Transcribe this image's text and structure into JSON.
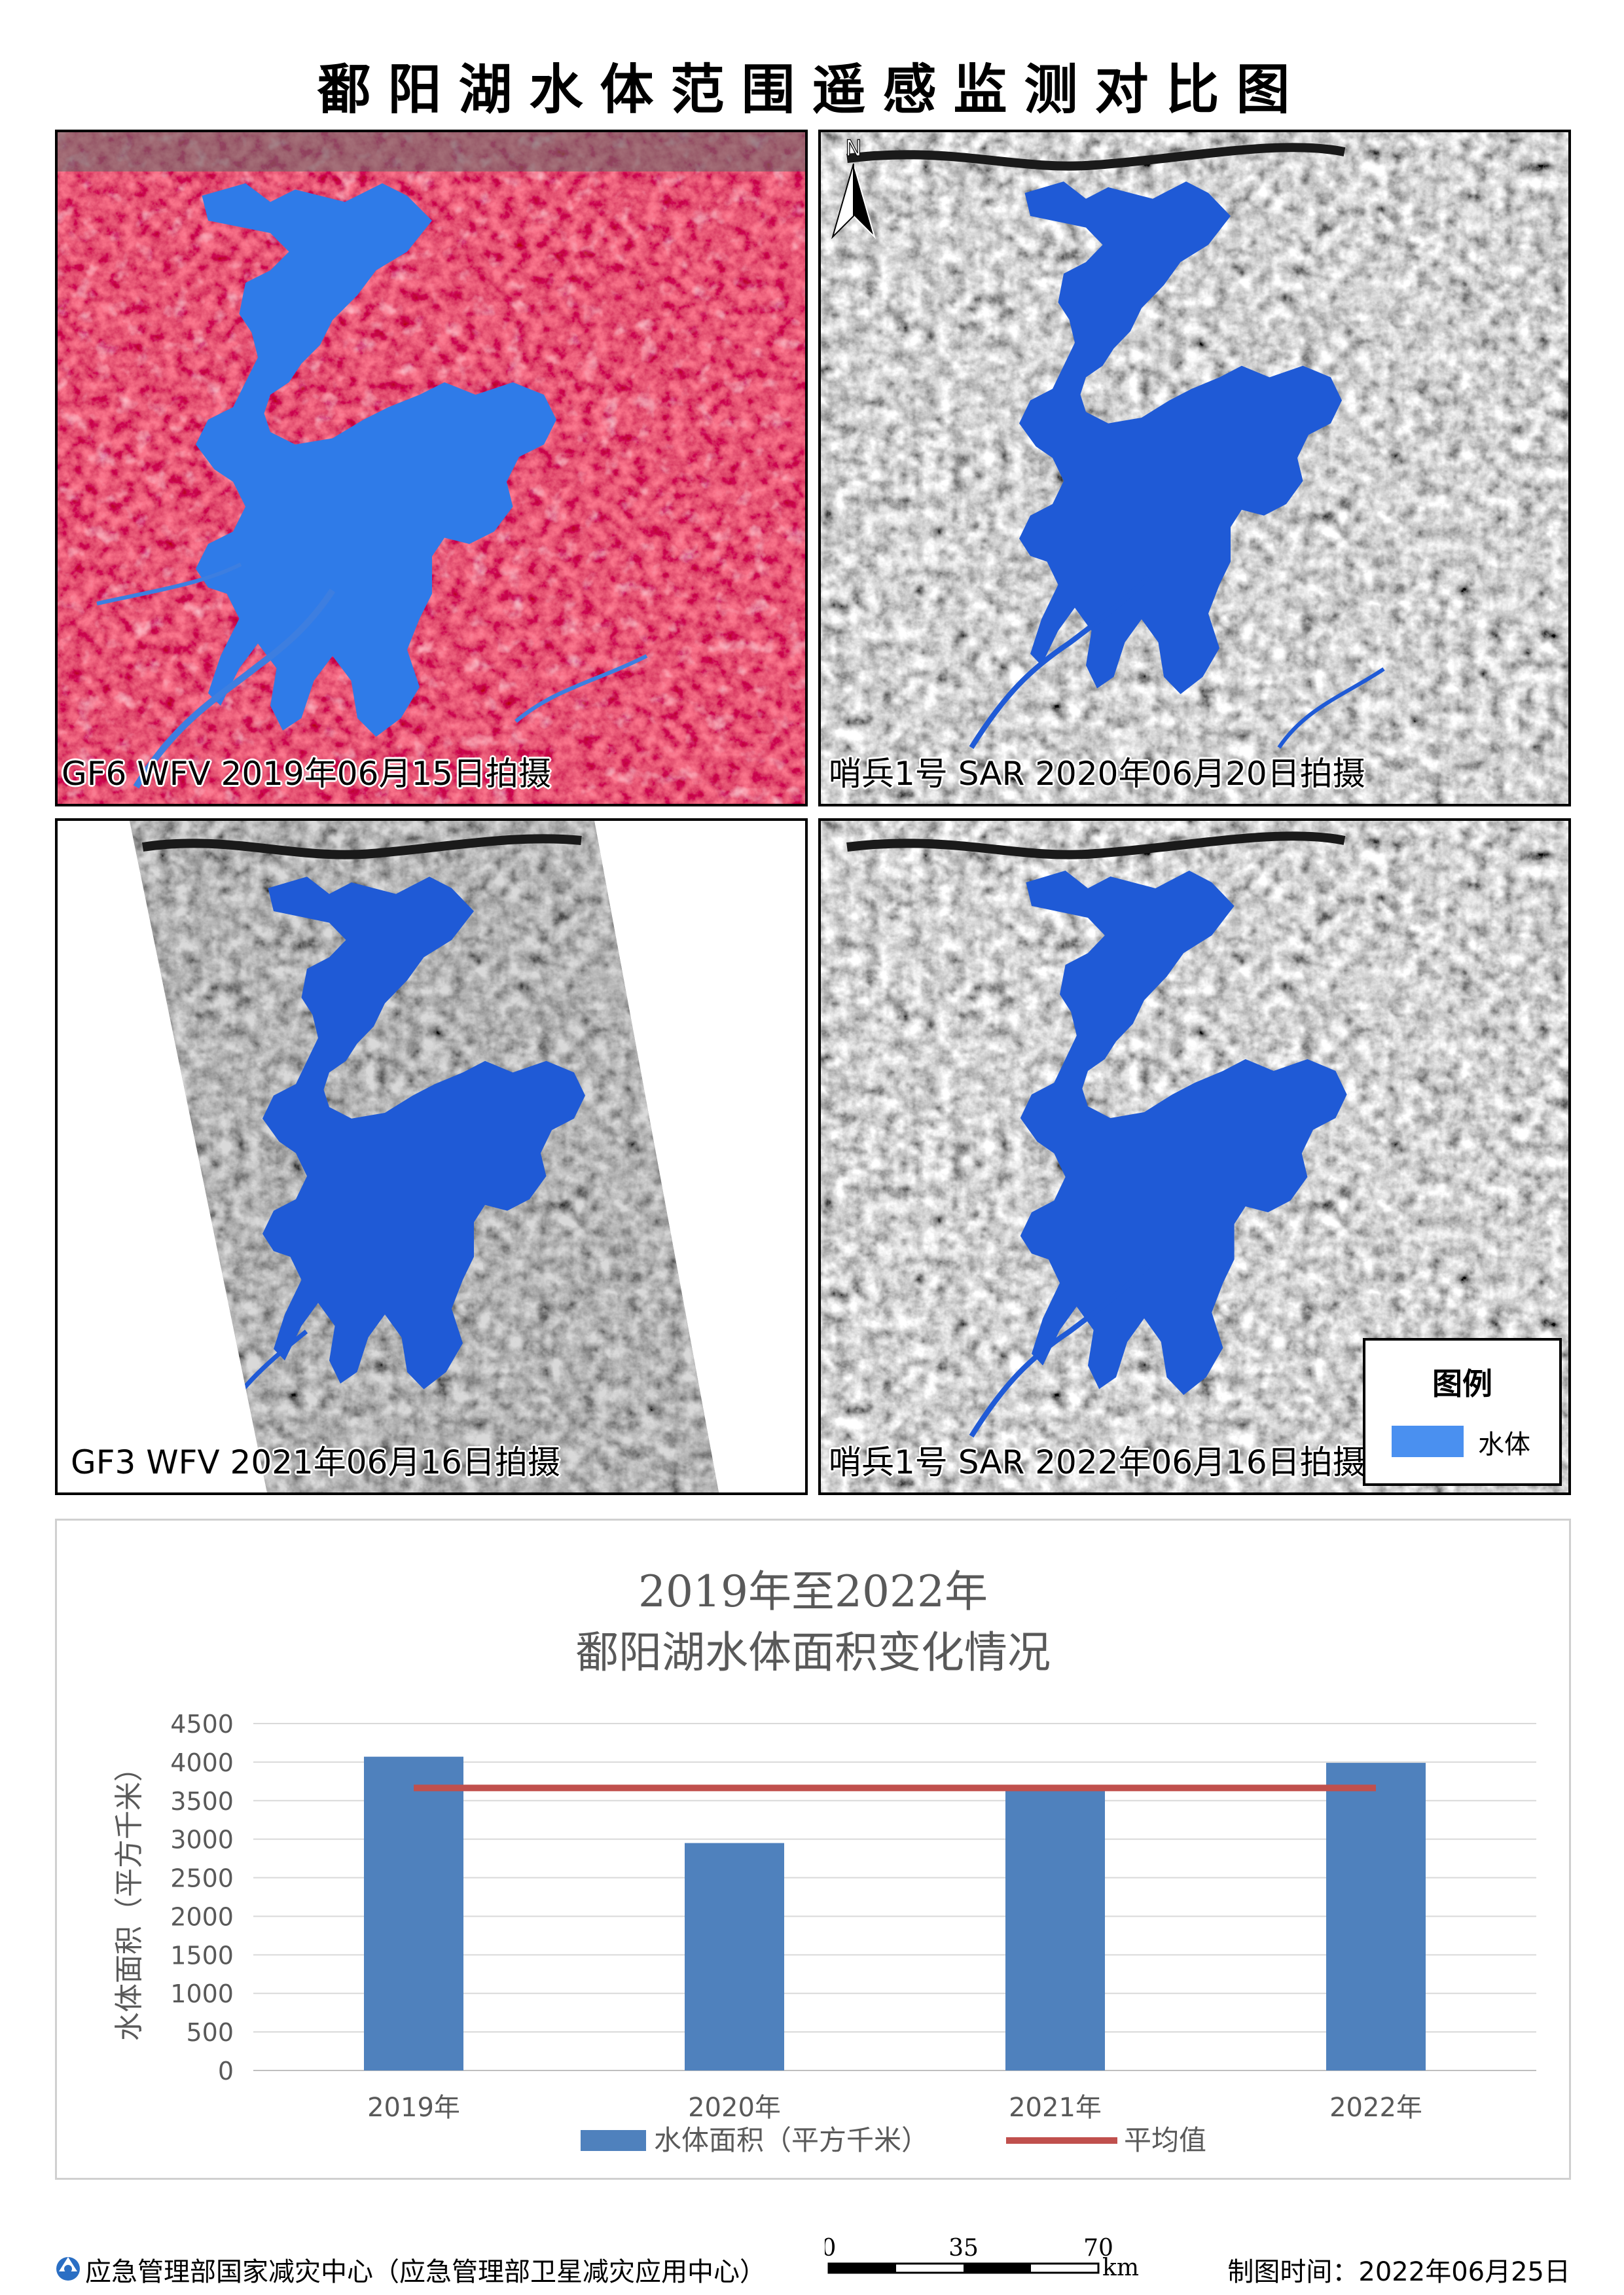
{
  "title": "鄱阳湖水体范围遥感监测对比图",
  "panels": [
    {
      "caption": "GF6 WFV 2019年06月15日拍摄",
      "style": "false-color"
    },
    {
      "caption": "哨兵1号 SAR 2020年06月20日拍摄",
      "style": "sar"
    },
    {
      "caption": "GF3 WFV 2021年06月16日拍摄",
      "style": "sar-strip"
    },
    {
      "caption": "哨兵1号 SAR 2022年06月16日拍摄",
      "style": "sar"
    }
  ],
  "north_label": "N",
  "legend": {
    "title": "图例",
    "item": "水体",
    "color": "#4a90f0"
  },
  "colors": {
    "water_optical": "#2f7be8",
    "water_sar": "#1f5ad6",
    "vegetation": "#e02a3c",
    "bar": "#4f81bd",
    "avg_line": "#c0504d"
  },
  "chart_data": {
    "type": "bar",
    "title_line1": "2019年至2022年",
    "title_line2": "鄱阳湖水体面积变化情况",
    "ylabel": "水体面积（平方千米）",
    "categories": [
      "2019年",
      "2020年",
      "2021年",
      "2022年"
    ],
    "series": [
      {
        "name": "水体面积（平方千米）",
        "values": [
          4070,
          2950,
          3650,
          3990
        ]
      },
      {
        "name": "平均值",
        "values": [
          3665,
          3665,
          3665,
          3665
        ],
        "type": "line"
      }
    ],
    "ylim": [
      0,
      4500
    ],
    "yticks": [
      "0",
      "500",
      "1000",
      "1500",
      "2000",
      "2500",
      "3000",
      "3500",
      "4000",
      "4500"
    ],
    "grid": true,
    "legend": "bottom"
  },
  "footer": {
    "org": "应急管理部国家减灾中心（应急管理部卫星减灾应用中心）",
    "date": "制图时间：2022年06月25日",
    "scale_labels": [
      "0",
      "35",
      "70"
    ],
    "scale_unit": "km"
  }
}
